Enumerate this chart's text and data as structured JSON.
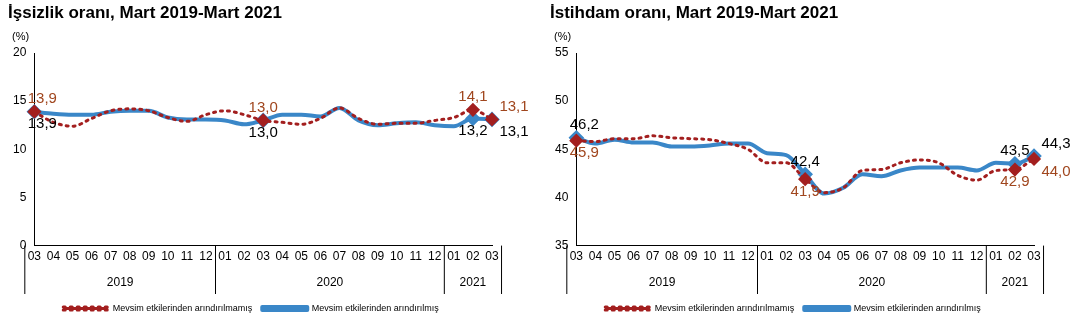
{
  "chart_data": [
    {
      "type": "line",
      "title": "İşsizlik oranı, Mart 2019-Mart 2021",
      "ylabel": "(%)",
      "categories": [
        "03",
        "04",
        "05",
        "06",
        "07",
        "08",
        "09",
        "10",
        "11",
        "12",
        "01",
        "02",
        "03",
        "04",
        "05",
        "06",
        "07",
        "08",
        "09",
        "10",
        "11",
        "12",
        "01",
        "02",
        "03"
      ],
      "annotations": [
        "2019",
        "2020",
        "2021"
      ],
      "ylim": [
        0,
        20
      ],
      "yticks": [
        0,
        5,
        10,
        15,
        20
      ],
      "grid": false,
      "legend": "bottom",
      "series": [
        {
          "name": "Mevsim etkilerinden arındırılmamış",
          "color": "#a31f1f",
          "line_style": "dotted",
          "values": [
            13.9,
            12.8,
            12.4,
            13.2,
            14.0,
            14.2,
            14.0,
            13.3,
            12.9,
            13.6,
            14.0,
            13.6,
            13.0,
            12.8,
            12.6,
            13.2,
            14.3,
            13.2,
            12.6,
            12.7,
            12.7,
            13.0,
            13.3,
            14.1,
            13.1
          ],
          "value_labels": [
            "13,9",
            null,
            null,
            null,
            null,
            null,
            null,
            null,
            null,
            null,
            null,
            null,
            "13,0",
            null,
            null,
            null,
            null,
            null,
            null,
            null,
            null,
            null,
            null,
            "14,1",
            "13,1"
          ]
        },
        {
          "name": "Mevsim etkilerinden arındırılmış",
          "color": "#3a87c8",
          "line_style": "solid",
          "values": [
            13.9,
            13.7,
            13.6,
            13.6,
            13.9,
            14.0,
            14.0,
            13.3,
            13.1,
            13.1,
            13.0,
            12.6,
            13.0,
            13.6,
            13.6,
            13.4,
            14.3,
            13.0,
            12.5,
            12.7,
            12.8,
            12.5,
            12.4,
            13.2,
            13.1
          ],
          "value_labels": [
            "13,9",
            null,
            null,
            null,
            null,
            null,
            null,
            null,
            null,
            null,
            null,
            null,
            "13,0",
            null,
            null,
            null,
            null,
            null,
            null,
            null,
            null,
            null,
            null,
            "13,2",
            "13,1"
          ]
        }
      ]
    },
    {
      "type": "line",
      "title": "İstihdam oranı, Mart 2019-Mart 2021",
      "ylabel": "(%)",
      "categories": [
        "03",
        "04",
        "05",
        "06",
        "07",
        "08",
        "09",
        "10",
        "11",
        "12",
        "01",
        "02",
        "03",
        "04",
        "05",
        "06",
        "07",
        "08",
        "09",
        "10",
        "11",
        "12",
        "01",
        "02",
        "03"
      ],
      "annotations": [
        "2019",
        "2020",
        "2021"
      ],
      "ylim": [
        35,
        55
      ],
      "yticks": [
        35,
        40,
        45,
        50,
        55
      ],
      "grid": false,
      "legend": "bottom",
      "series": [
        {
          "name": "Mevsim etkilerinden arındırılmamış",
          "color": "#a31f1f",
          "line_style": "dotted",
          "values": [
            45.9,
            45.8,
            46.1,
            46.1,
            46.4,
            46.2,
            46.1,
            46.0,
            45.6,
            45.0,
            43.6,
            43.6,
            41.9,
            40.5,
            41.0,
            42.8,
            42.9,
            43.6,
            43.9,
            43.6,
            42.3,
            41.8,
            42.8,
            42.9,
            44.0
          ],
          "value_labels": [
            "45,9",
            null,
            null,
            null,
            null,
            null,
            null,
            null,
            null,
            null,
            null,
            null,
            "41,9",
            null,
            null,
            null,
            null,
            null,
            null,
            null,
            null,
            null,
            null,
            "42,9",
            "44,0"
          ]
        },
        {
          "name": "Mevsim etkilerinden arındırılmış",
          "color": "#3a87c8",
          "line_style": "solid",
          "values": [
            46.2,
            45.6,
            46.0,
            45.7,
            45.7,
            45.3,
            45.3,
            45.4,
            45.6,
            45.6,
            44.6,
            44.4,
            42.4,
            40.4,
            41.0,
            42.4,
            42.2,
            42.8,
            43.1,
            43.1,
            43.1,
            42.8,
            43.6,
            43.5,
            44.3
          ],
          "value_labels": [
            "46,2",
            null,
            null,
            null,
            null,
            null,
            null,
            null,
            null,
            null,
            null,
            null,
            "42,4",
            null,
            null,
            null,
            null,
            null,
            null,
            null,
            null,
            null,
            null,
            "43,5",
            "44,3"
          ]
        }
      ]
    }
  ]
}
